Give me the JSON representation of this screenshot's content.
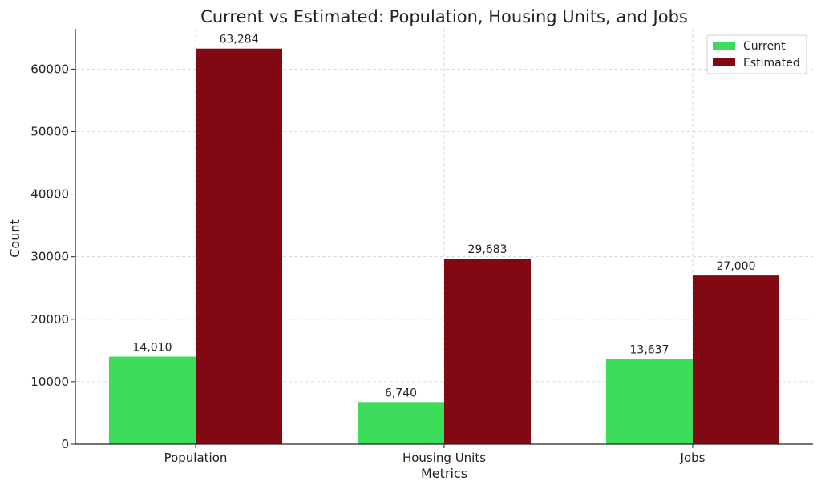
{
  "chart_data": {
    "type": "bar",
    "title": "Current vs Estimated: Population, Housing Units, and Jobs",
    "xlabel": "Metrics",
    "ylabel": "Count",
    "categories": [
      "Population",
      "Housing Units",
      "Jobs"
    ],
    "series": [
      {
        "name": "Current",
        "color": "#3ddc5a",
        "values": [
          14010,
          6740,
          13637
        ],
        "labels": [
          "14,010",
          "6,740",
          "13,637"
        ]
      },
      {
        "name": "Estimated",
        "color": "#800914",
        "values": [
          63284,
          29683,
          27000
        ],
        "labels": [
          "63,284",
          "29,683",
          "27,000"
        ]
      }
    ],
    "ylim": [
      0,
      66450
    ],
    "yticks": [
      0,
      10000,
      20000,
      30000,
      40000,
      50000,
      60000
    ],
    "ytick_labels": [
      "0",
      "10000",
      "20000",
      "30000",
      "40000",
      "50000",
      "60000"
    ],
    "grid": true,
    "legend_position": "top-right"
  }
}
